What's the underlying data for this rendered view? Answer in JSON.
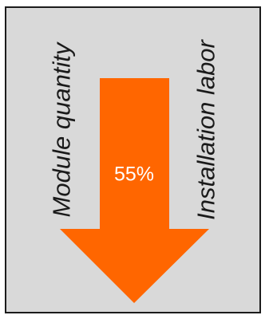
{
  "labels": {
    "left": "Module quantity",
    "right": "Installation labor",
    "percent": "55%"
  },
  "colors": {
    "panel_background": "#d9d9d9",
    "arrow": "#ff6600",
    "border": "#1c1c1c",
    "text": "#1a1a1a",
    "percent_text": "#ffffff"
  },
  "arrow_direction": "down"
}
